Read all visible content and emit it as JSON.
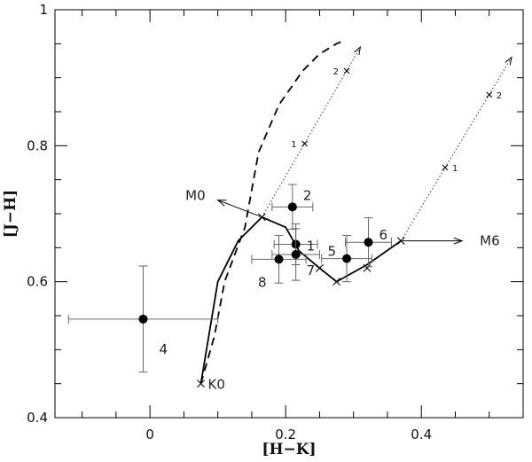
{
  "chart_data": {
    "type": "scatter",
    "xlabel": "[H−K]",
    "ylabel": "[J−H]",
    "xlim": [
      -0.14,
      0.55
    ],
    "ylim": [
      0.4,
      1.0
    ],
    "x_ticks": [
      0,
      0.2,
      0.4
    ],
    "x_tick_labels": [
      "0",
      "0.2",
      "0.4"
    ],
    "y_ticks": [
      0.4,
      0.6,
      0.8,
      1.0
    ],
    "y_tick_labels": [
      "0.4",
      "0.6",
      "0.8",
      "1"
    ],
    "points": [
      {
        "label": "4",
        "x": -0.01,
        "y": 0.545,
        "xerr": 0.11,
        "yerr": 0.078
      },
      {
        "label": "2",
        "x": 0.21,
        "y": 0.71,
        "xerr": 0.03,
        "yerr": 0.033
      },
      {
        "label": "1",
        "x": 0.215,
        "y": 0.655,
        "xerr": 0.032,
        "yerr": 0.03
      },
      {
        "label": "7",
        "x": 0.215,
        "y": 0.64,
        "xerr": 0.035,
        "yerr": 0.038
      },
      {
        "label": "8",
        "x": 0.19,
        "y": 0.633,
        "xerr": 0.04,
        "yerr": 0.035
      },
      {
        "label": "5",
        "x": 0.29,
        "y": 0.634,
        "xerr": 0.037,
        "yerr": 0.034
      },
      {
        "label": "6",
        "x": 0.322,
        "y": 0.658,
        "xerr": 0.034,
        "yerr": 0.036
      }
    ],
    "dwarf_sequence": [
      [
        0.075,
        0.45
      ],
      [
        0.1,
        0.6
      ],
      [
        0.13,
        0.66
      ],
      [
        0.165,
        0.695
      ],
      [
        0.2,
        0.68
      ],
      [
        0.22,
        0.645
      ],
      [
        0.25,
        0.62
      ],
      [
        0.275,
        0.6
      ],
      [
        0.32,
        0.625
      ],
      [
        0.37,
        0.66
      ]
    ],
    "dwarf_marks": [
      [
        0.075,
        0.45
      ],
      [
        0.165,
        0.695
      ],
      [
        0.25,
        0.62
      ],
      [
        0.275,
        0.6
      ],
      [
        0.32,
        0.62
      ],
      [
        0.37,
        0.66
      ]
    ],
    "giant_sequence": [
      [
        0.075,
        0.45
      ],
      [
        0.095,
        0.52
      ],
      [
        0.11,
        0.6
      ],
      [
        0.14,
        0.68
      ],
      [
        0.16,
        0.79
      ],
      [
        0.19,
        0.86
      ],
      [
        0.225,
        0.91
      ],
      [
        0.25,
        0.935
      ],
      [
        0.275,
        0.95
      ],
      [
        0.287,
        0.955
      ]
    ],
    "reddening_vectors": [
      {
        "x0": 0.165,
        "y0": 0.695,
        "x1": 0.31,
        "y1": 0.945,
        "marks": [
          {
            "x": 0.228,
            "y": 0.803,
            "label": "1"
          },
          {
            "x": 0.29,
            "y": 0.91,
            "label": "2"
          }
        ]
      },
      {
        "x0": 0.37,
        "y0": 0.66,
        "x1": 0.533,
        "y1": 0.93,
        "marks": [
          {
            "x": 0.435,
            "y": 0.768,
            "label": "1"
          },
          {
            "x": 0.5,
            "y": 0.875,
            "label": "2"
          }
        ]
      }
    ],
    "spectral_arrows": [
      {
        "label": "M0",
        "x0": 0.165,
        "y0": 0.695,
        "x1": 0.1,
        "y1": 0.72
      },
      {
        "label": "M6",
        "x0": 0.37,
        "y0": 0.66,
        "x1": 0.46,
        "y1": 0.66
      }
    ],
    "start_label": "K0"
  }
}
